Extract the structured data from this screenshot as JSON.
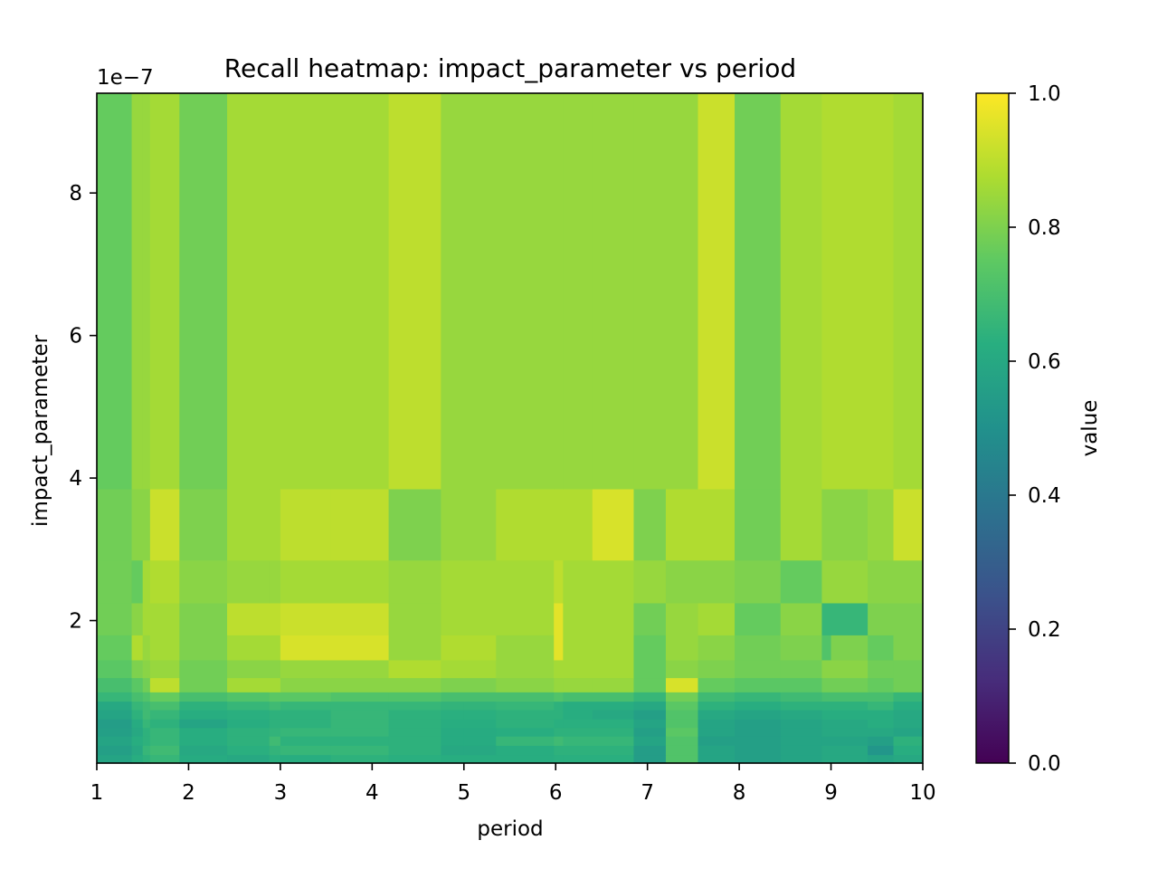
{
  "chart_data": {
    "type": "heatmap",
    "title": "Recall heatmap: impact_parameter vs period",
    "xlabel": "period",
    "ylabel": "impact_parameter",
    "y_offset_label": "1e−7",
    "xlim": [
      1,
      10
    ],
    "ylim": [
      0,
      9.4e-07
    ],
    "xticks": [
      "1",
      "2",
      "3",
      "4",
      "5",
      "6",
      "7",
      "8",
      "9",
      "10"
    ],
    "yticks": [
      "2",
      "4",
      "6",
      "8"
    ],
    "ytick_values": [
      2e-07,
      4e-07,
      6e-07,
      8e-07
    ],
    "colormap": "viridis",
    "colorbar": {
      "label": "value",
      "range": [
        0,
        1
      ],
      "ticks": [
        "0.0",
        "0.2",
        "0.4",
        "0.6",
        "0.8",
        "1.0"
      ]
    },
    "x_edges": [
      1,
      1.38,
      1.5,
      1.58,
      1.9,
      2.42,
      2.88,
      3.0,
      3.55,
      4.18,
      4.75,
      5.0,
      5.35,
      5.98,
      6.08,
      6.4,
      6.85,
      7.2,
      7.55,
      7.95,
      8.45,
      8.9,
      9.0,
      9.4,
      9.68,
      10
    ],
    "y_edges": [
      0,
      1.2e-08,
      2.5e-08,
      3.8e-08,
      5e-08,
      6.2e-08,
      7.5e-08,
      8.7e-08,
      1e-07,
      1.2e-07,
      1.45e-07,
      1.8e-07,
      2.25e-07,
      2.85e-07,
      3.85e-07,
      9.4e-07
    ],
    "values": [
      [
        0.58,
        0.62,
        0.64,
        0.66,
        0.61,
        0.6,
        0.63,
        0.62,
        0.64,
        0.63,
        0.62,
        0.62,
        0.62,
        0.63,
        0.63,
        0.63,
        0.55,
        0.72,
        0.58,
        0.56,
        0.58,
        0.6,
        0.6,
        0.58,
        0.6
      ],
      [
        0.56,
        0.6,
        0.66,
        0.68,
        0.6,
        0.63,
        0.65,
        0.66,
        0.66,
        0.64,
        0.6,
        0.6,
        0.62,
        0.64,
        0.64,
        0.64,
        0.55,
        0.72,
        0.58,
        0.56,
        0.58,
        0.6,
        0.6,
        0.52,
        0.62
      ],
      [
        0.58,
        0.62,
        0.64,
        0.66,
        0.62,
        0.64,
        0.68,
        0.64,
        0.64,
        0.64,
        0.61,
        0.61,
        0.66,
        0.68,
        0.66,
        0.66,
        0.58,
        0.72,
        0.56,
        0.56,
        0.58,
        0.58,
        0.58,
        0.56,
        0.64
      ],
      [
        0.56,
        0.6,
        0.64,
        0.66,
        0.62,
        0.64,
        0.65,
        0.66,
        0.66,
        0.64,
        0.61,
        0.61,
        0.62,
        0.64,
        0.64,
        0.64,
        0.56,
        0.74,
        0.58,
        0.56,
        0.58,
        0.6,
        0.6,
        0.6,
        0.58
      ],
      [
        0.55,
        0.61,
        0.66,
        0.64,
        0.58,
        0.62,
        0.64,
        0.64,
        0.66,
        0.64,
        0.62,
        0.62,
        0.64,
        0.63,
        0.63,
        0.63,
        0.58,
        0.72,
        0.58,
        0.56,
        0.58,
        0.6,
        0.6,
        0.62,
        0.6
      ],
      [
        0.58,
        0.64,
        0.68,
        0.66,
        0.62,
        0.63,
        0.64,
        0.64,
        0.66,
        0.64,
        0.63,
        0.63,
        0.64,
        0.64,
        0.62,
        0.6,
        0.56,
        0.72,
        0.6,
        0.58,
        0.6,
        0.62,
        0.62,
        0.62,
        0.6
      ],
      [
        0.6,
        0.66,
        0.68,
        0.7,
        0.64,
        0.66,
        0.68,
        0.66,
        0.66,
        0.66,
        0.65,
        0.65,
        0.66,
        0.64,
        0.62,
        0.62,
        0.6,
        0.74,
        0.64,
        0.62,
        0.64,
        0.64,
        0.64,
        0.66,
        0.62
      ],
      [
        0.66,
        0.7,
        0.72,
        0.76,
        0.7,
        0.72,
        0.74,
        0.74,
        0.72,
        0.72,
        0.7,
        0.7,
        0.7,
        0.72,
        0.7,
        0.7,
        0.66,
        0.78,
        0.68,
        0.66,
        0.68,
        0.7,
        0.7,
        0.7,
        0.66
      ],
      [
        0.7,
        0.74,
        0.78,
        0.9,
        0.78,
        0.86,
        0.86,
        0.82,
        0.82,
        0.82,
        0.8,
        0.8,
        0.82,
        0.84,
        0.84,
        0.84,
        0.76,
        0.94,
        0.76,
        0.74,
        0.74,
        0.78,
        0.78,
        0.76,
        0.78
      ],
      [
        0.74,
        0.8,
        0.82,
        0.84,
        0.78,
        0.82,
        0.82,
        0.84,
        0.84,
        0.88,
        0.86,
        0.86,
        0.84,
        0.86,
        0.86,
        0.86,
        0.76,
        0.82,
        0.8,
        0.78,
        0.78,
        0.82,
        0.82,
        0.78,
        0.78
      ],
      [
        0.76,
        0.88,
        0.84,
        0.86,
        0.8,
        0.86,
        0.86,
        0.94,
        0.94,
        0.84,
        0.88,
        0.88,
        0.84,
        0.96,
        0.86,
        0.86,
        0.76,
        0.84,
        0.82,
        0.78,
        0.8,
        0.72,
        0.8,
        0.76,
        0.8
      ],
      [
        0.78,
        0.82,
        0.86,
        0.86,
        0.8,
        0.9,
        0.9,
        0.92,
        0.92,
        0.84,
        0.86,
        0.86,
        0.86,
        0.96,
        0.86,
        0.86,
        0.78,
        0.84,
        0.86,
        0.76,
        0.82,
        0.66,
        0.66,
        0.8,
        0.8
      ],
      [
        0.78,
        0.76,
        0.86,
        0.88,
        0.82,
        0.84,
        0.84,
        0.86,
        0.86,
        0.84,
        0.86,
        0.86,
        0.86,
        0.9,
        0.86,
        0.86,
        0.84,
        0.82,
        0.82,
        0.8,
        0.76,
        0.84,
        0.84,
        0.82,
        0.82
      ],
      [
        0.78,
        0.82,
        0.82,
        0.92,
        0.8,
        0.86,
        0.86,
        0.9,
        0.9,
        0.8,
        0.84,
        0.84,
        0.88,
        0.88,
        0.88,
        0.94,
        0.8,
        0.88,
        0.88,
        0.78,
        0.86,
        0.82,
        0.82,
        0.84,
        0.92
      ],
      [
        0.76,
        0.84,
        0.84,
        0.86,
        0.78,
        0.86,
        0.86,
        0.86,
        0.86,
        0.9,
        0.84,
        0.84,
        0.84,
        0.84,
        0.84,
        0.84,
        0.84,
        0.84,
        0.92,
        0.78,
        0.86,
        0.88,
        0.88,
        0.88,
        0.86
      ]
    ]
  }
}
